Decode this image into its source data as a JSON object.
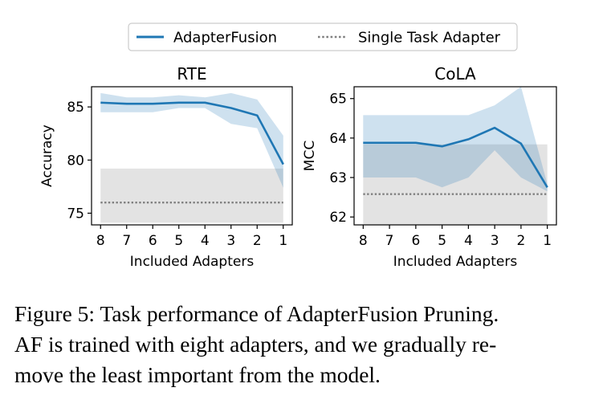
{
  "legend": {
    "placement": "top-center",
    "entries": [
      {
        "label": "AdapterFusion",
        "style": "solid",
        "color": "#1f77b4"
      },
      {
        "label": "Single Task Adapter",
        "style": "dotted",
        "color": "#808080"
      }
    ]
  },
  "chart_data": [
    {
      "type": "line",
      "title": "RTE",
      "xlabel": "Included Adapters",
      "ylabel": "Accuracy",
      "x": [
        8,
        7,
        6,
        5,
        4,
        3,
        2,
        1
      ],
      "xticks": [
        "8",
        "7",
        "6",
        "5",
        "4",
        "3",
        "2",
        "1"
      ],
      "yticks": [
        75,
        80,
        85
      ],
      "ylim": [
        73.9,
        86.9
      ],
      "grid": false,
      "series": [
        {
          "name": "AdapterFusion",
          "color": "#1f77b4",
          "values": [
            85.4,
            85.3,
            85.3,
            85.4,
            85.4,
            84.9,
            84.2,
            79.6
          ],
          "band_upper": [
            86.3,
            85.9,
            85.9,
            86.1,
            85.9,
            86.3,
            85.7,
            82.3
          ],
          "band_lower": [
            84.5,
            84.5,
            84.5,
            84.9,
            84.9,
            83.4,
            83.0,
            77.4
          ]
        }
      ],
      "baseline": {
        "name": "Single Task Adapter",
        "value": 76.0,
        "band": [
          74.1,
          79.2
        ],
        "color": "#808080"
      }
    },
    {
      "type": "line",
      "title": "CoLA",
      "xlabel": "Included Adapters",
      "ylabel": "MCC",
      "x": [
        8,
        7,
        6,
        5,
        4,
        3,
        2,
        1
      ],
      "xticks": [
        "8",
        "7",
        "6",
        "5",
        "4",
        "3",
        "2",
        "1"
      ],
      "yticks": [
        62,
        63,
        64,
        65
      ],
      "ylim": [
        61.8,
        65.3
      ],
      "grid": false,
      "series": [
        {
          "name": "AdapterFusion",
          "color": "#1f77b4",
          "values": [
            63.88,
            63.88,
            63.88,
            63.79,
            63.97,
            64.26,
            63.86,
            62.75
          ],
          "band_upper": [
            64.58,
            64.58,
            64.58,
            64.58,
            64.58,
            64.83,
            65.3,
            62.83
          ],
          "band_lower": [
            63.0,
            63.0,
            63.0,
            62.75,
            63.0,
            63.69,
            63.0,
            62.65
          ]
        }
      ],
      "baseline": {
        "name": "Single Task Adapter",
        "value": 62.58,
        "band": [
          61.8,
          63.84
        ],
        "color": "#808080"
      }
    }
  ],
  "caption": {
    "lines": [
      "Figure 5: Task performance of AdapterFusion Pruning.",
      "AF is trained with eight adapters, and we gradually re-",
      "move the least important from the model."
    ]
  }
}
